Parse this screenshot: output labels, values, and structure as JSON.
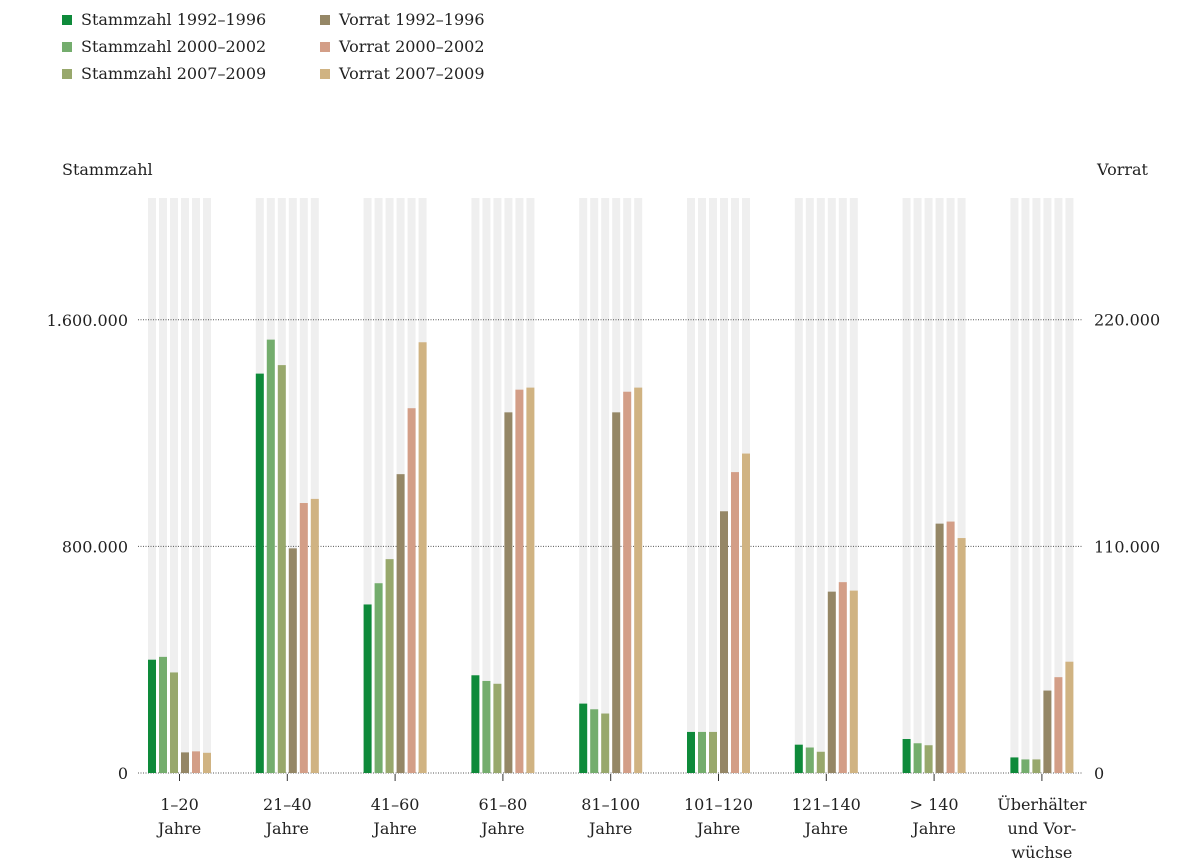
{
  "chart_data": {
    "type": "bar",
    "categories": [
      [
        "1–20",
        "Jahre"
      ],
      [
        "21–40",
        "Jahre"
      ],
      [
        "41–60",
        "Jahre"
      ],
      [
        "61–80",
        "Jahre"
      ],
      [
        "81–100",
        "Jahre"
      ],
      [
        "101–120",
        "Jahre"
      ],
      [
        "121–140",
        "Jahre"
      ],
      [
        "> 140",
        "Jahre"
      ],
      [
        "Überhälter",
        "und Vor-",
        "wüchse"
      ]
    ],
    "ylabel_left": "Stammzahl",
    "ylabel_right": "Vorrat",
    "ylim_left": [
      0,
      2030000
    ],
    "ylim_right": [
      0,
      279000
    ],
    "yticks_left": [
      {
        "value": 0,
        "label": "0"
      },
      {
        "value": 800000,
        "label": "800.000"
      },
      {
        "value": 1600000,
        "label": "1.600.000"
      }
    ],
    "yticks_right": [
      {
        "value": 0,
        "label": "0"
      },
      {
        "value": 110000,
        "label": "110.000"
      },
      {
        "value": 220000,
        "label": "220.000"
      }
    ],
    "series": [
      {
        "name": "Stammzahl 1992–1996",
        "axis": "left",
        "color": "#0e8a3a",
        "values": [
          400000,
          1410000,
          595000,
          345000,
          245000,
          145000,
          100000,
          120000,
          55000
        ]
      },
      {
        "name": "Stammzahl 2000–2002",
        "axis": "left",
        "color": "#74ad6d",
        "values": [
          410000,
          1530000,
          670000,
          325000,
          225000,
          145000,
          90000,
          105000,
          48000
        ]
      },
      {
        "name": "Stammzahl 2007–2009",
        "axis": "left",
        "color": "#98a86c",
        "values": [
          355000,
          1440000,
          755000,
          315000,
          210000,
          145000,
          75000,
          98000,
          48000
        ]
      },
      {
        "name": "Vorrat 1992–1996",
        "axis": "right",
        "color": "#958766",
        "values": [
          10000,
          109000,
          145000,
          175000,
          175000,
          127000,
          88000,
          121000,
          40000
        ]
      },
      {
        "name": "Vorrat 2000–2002",
        "axis": "right",
        "color": "#d39e87",
        "values": [
          10500,
          131000,
          177000,
          186000,
          185000,
          146000,
          92600,
          122000,
          46500
        ]
      },
      {
        "name": "Vorrat 2007–2009",
        "axis": "right",
        "color": "#d0b382",
        "values": [
          9800,
          133000,
          209000,
          187000,
          187000,
          155000,
          88500,
          114000,
          54000
        ]
      }
    ],
    "grid": true,
    "legend_position": "top-left"
  }
}
